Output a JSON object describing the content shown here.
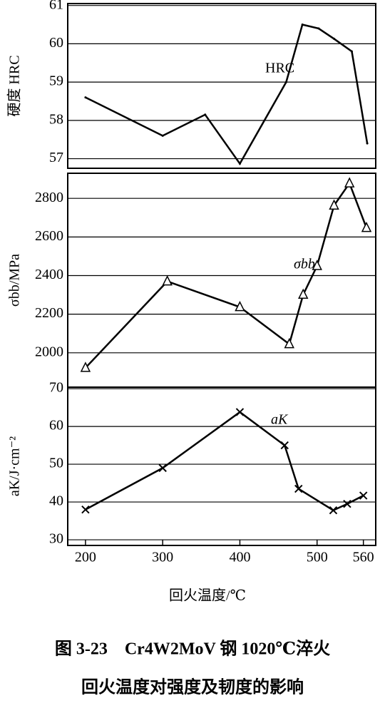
{
  "chart_data": [
    {
      "type": "line",
      "ylabel": "硬度 HRC",
      "annotation": "HRC",
      "marker": "none",
      "color": "#000000",
      "x": [
        200,
        300,
        355,
        400,
        460,
        481,
        502,
        522,
        545,
        565
      ],
      "values": [
        58.6,
        57.6,
        58.15,
        56.87,
        59.0,
        60.5,
        60.4,
        60.13,
        59.8,
        57.4
      ],
      "xlim": [
        177,
        576
      ],
      "ylim": [
        56.75,
        61.05
      ],
      "yticks": [
        57,
        58,
        59,
        60,
        61
      ],
      "grid": true
    },
    {
      "type": "line",
      "ylabel": "σbb/MPa",
      "annotation": "σbb",
      "marker": "triangle",
      "color": "#000000",
      "x": [
        200,
        306,
        400,
        464,
        482,
        500,
        522,
        542,
        564
      ],
      "values": [
        1922,
        2370,
        2237,
        2045,
        2301,
        2450,
        2763,
        2878,
        2647
      ],
      "xlim": [
        177,
        576
      ],
      "ylim": [
        1822,
        2930
      ],
      "yticks": [
        2000,
        2200,
        2400,
        2600,
        2800
      ],
      "grid": true
    },
    {
      "type": "line",
      "ylabel": "aK/J·cm⁻²",
      "annotation": "aK",
      "marker": "x",
      "color": "#000000",
      "xlabel": "回火温度/℃",
      "x": [
        200,
        300,
        400,
        458,
        476,
        521,
        539,
        560
      ],
      "values": [
        38,
        49,
        63.8,
        55,
        43.5,
        37.8,
        39.5,
        41.7
      ],
      "xlim": [
        177,
        576
      ],
      "ylim": [
        28.5,
        70.4
      ],
      "yticks": [
        30,
        40,
        50,
        60,
        70
      ],
      "grid": true,
      "xticks": [
        200,
        300,
        400,
        500,
        560
      ]
    }
  ],
  "caption": [
    "图 3-23　Cr4W2MoV 钢 1020℃淬火",
    "回火温度对强度及韧度的影响"
  ]
}
